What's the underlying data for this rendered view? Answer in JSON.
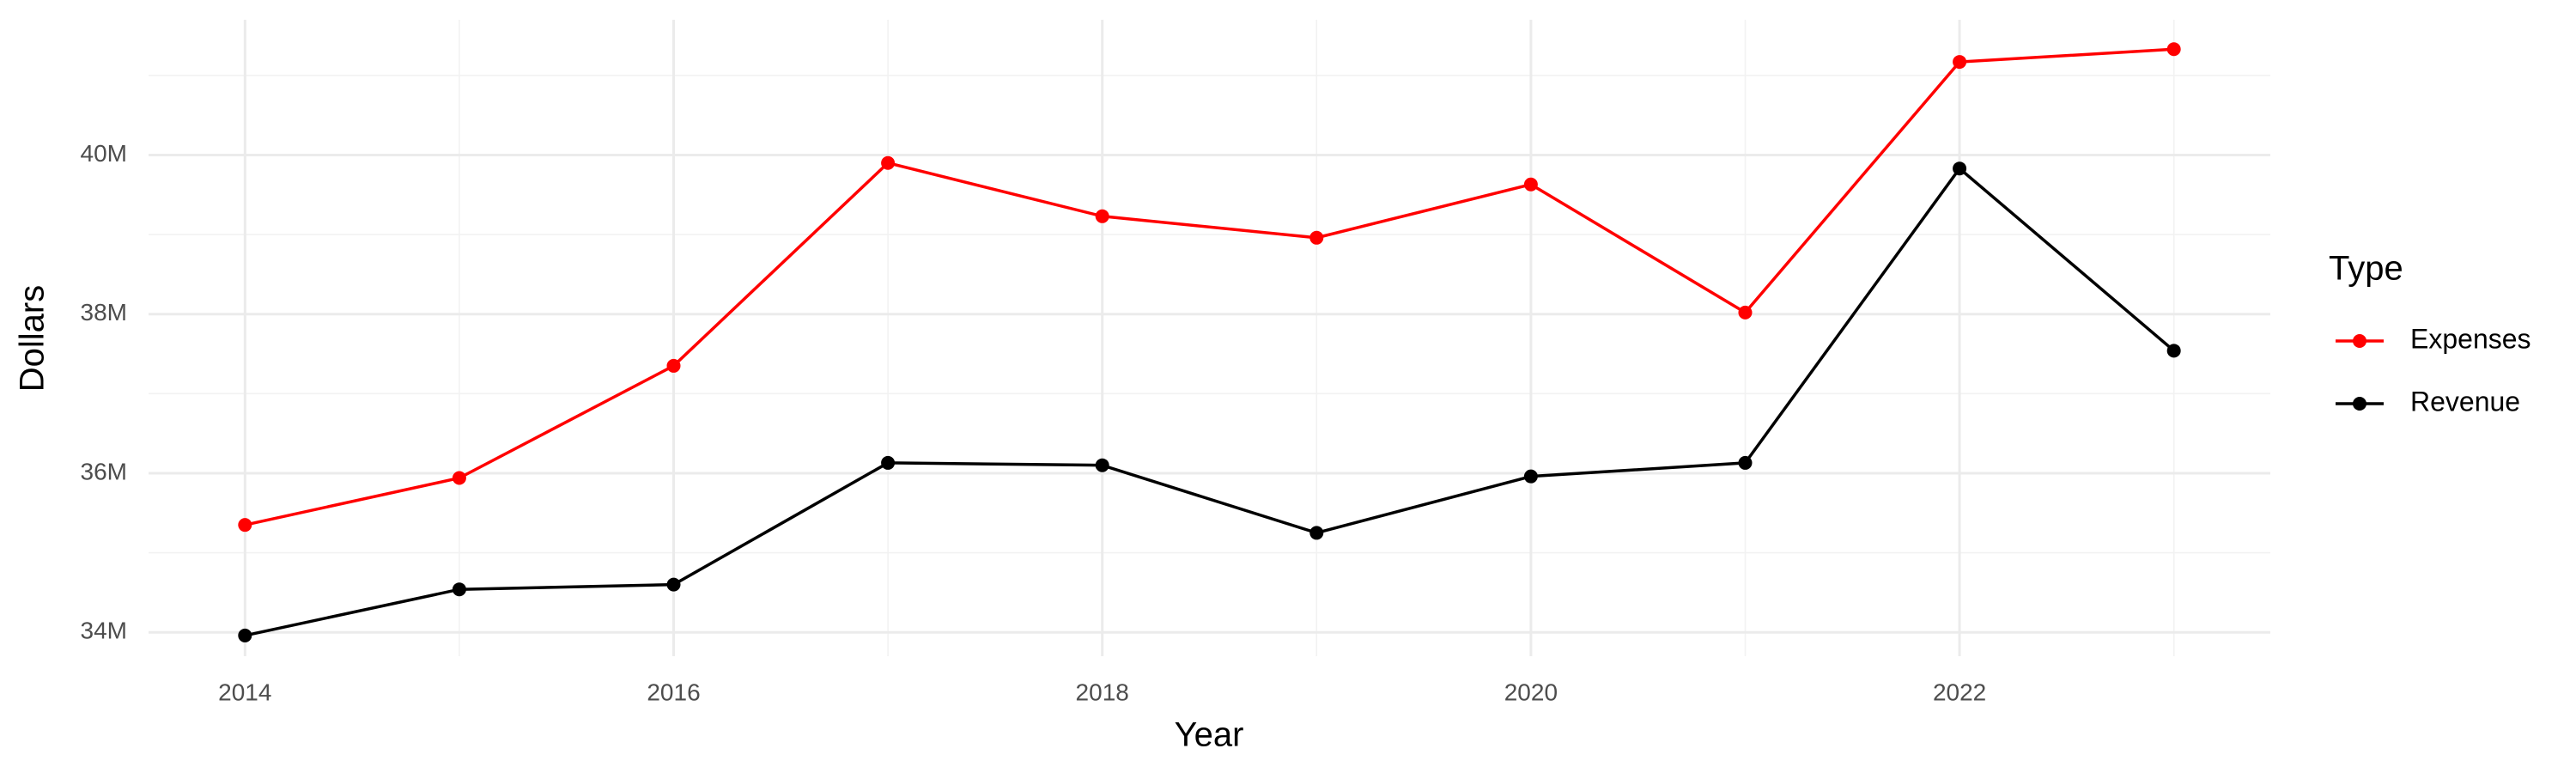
{
  "chart_data": {
    "type": "line",
    "x_label": "Year",
    "y_label": "Dollars",
    "legend_title": "Type",
    "legend_position": "right",
    "grid": true,
    "x": [
      2014,
      2015,
      2016,
      2017,
      2018,
      2019,
      2020,
      2021,
      2022,
      2023
    ],
    "series": [
      {
        "name": "Expenses",
        "color": "#ff0000",
        "values": [
          35350000,
          35940000,
          37350000,
          39900000,
          39230000,
          38960000,
          39630000,
          38020000,
          41170000,
          41330000
        ]
      },
      {
        "name": "Revenue",
        "color": "#000000",
        "values": [
          33960000,
          34540000,
          34600000,
          36130000,
          36100000,
          35250000,
          35960000,
          36130000,
          39830000,
          37540000
        ]
      }
    ],
    "xlim": [
      2013.55,
      2023.45
    ],
    "xticks": [
      2014,
      2016,
      2018,
      2020,
      2022
    ],
    "ylim": [
      33700000,
      41700000
    ],
    "yticks": [
      {
        "value": 34000000,
        "label": "34M"
      },
      {
        "value": 36000000,
        "label": "36M"
      },
      {
        "value": 38000000,
        "label": "38M"
      },
      {
        "value": 40000000,
        "label": "40M"
      }
    ]
  }
}
